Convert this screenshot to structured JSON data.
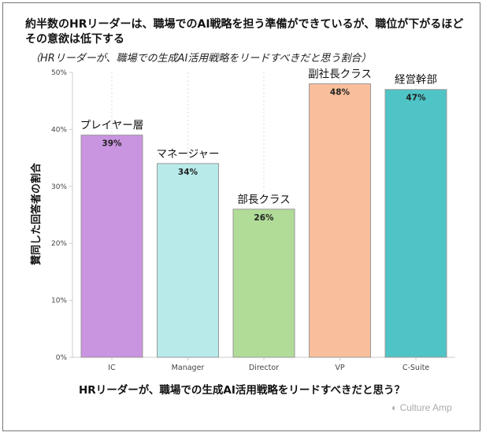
{
  "chart_data": {
    "type": "bar",
    "title": "約半数のHRリーダーは、職場でのAI戦略を担う準備ができているが、職位が下がるほどその意欲は低下する",
    "subtitle": "（HRリーダーが、職場での生成AI活用戦略をリードすべきだと思う割合）",
    "xlabel": "HRリーダーが、職場での生成AI活用戦略をリードすべきだと思う？",
    "ylabel": "賛同した回答者の割合",
    "categories": [
      "IC",
      "Manager",
      "Director",
      "VP",
      "C-Suite"
    ],
    "category_labels_jp": [
      "プレイヤー層",
      "マネージャー",
      "部長クラス",
      "副社長クラス",
      "経営幹部"
    ],
    "values": [
      39,
      34,
      26,
      48,
      47
    ],
    "data_labels": [
      "39%",
      "34%",
      "26%",
      "48%",
      "47%"
    ],
    "colors": [
      "#c994e0",
      "#b8eaea",
      "#b0dc98",
      "#f9bf9c",
      "#4fc4c6"
    ],
    "ylim": [
      0,
      50
    ],
    "yticks": [
      "0%",
      "10%",
      "20%",
      "30%",
      "40%",
      "50%"
    ],
    "grid": "vertical dotted",
    "legend": "none"
  },
  "logo": "Culture Amp"
}
